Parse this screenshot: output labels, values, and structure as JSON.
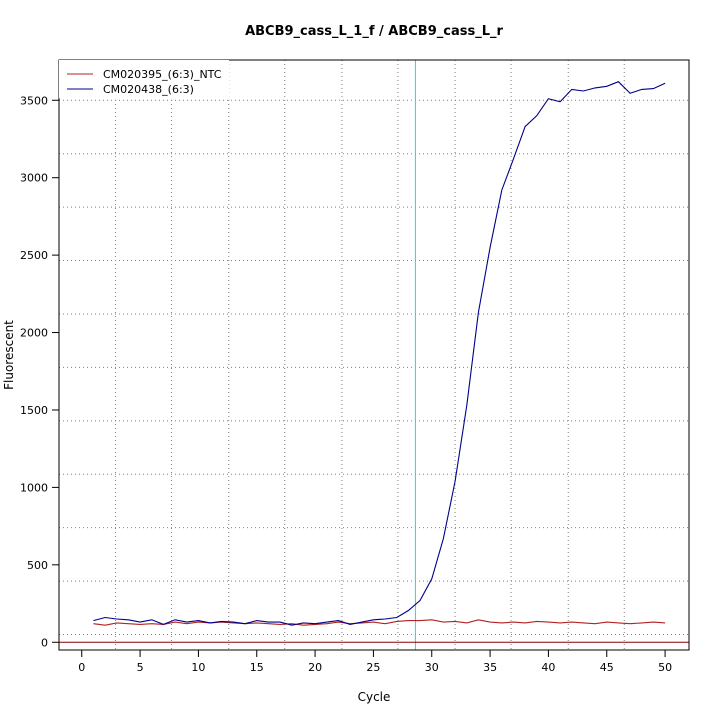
{
  "chart_data": {
    "type": "line",
    "title": "ABCB9_cass_L_1_f / ABCB9_cass_L_r",
    "xlabel": "Cycle",
    "ylabel": "Fluorescent",
    "xlim": [
      -1.95,
      52.05
    ],
    "ylim": [
      -50,
      3760
    ],
    "x_ticks": [
      0,
      5,
      10,
      15,
      20,
      25,
      30,
      35,
      40,
      45,
      50
    ],
    "x_tick_labels": [
      "0",
      "5",
      "10",
      "15",
      "20",
      "25",
      "30",
      "35",
      "40",
      "45",
      "50"
    ],
    "y_ticks": [
      0,
      500,
      1000,
      1500,
      2000,
      2500,
      3000,
      3500
    ],
    "y_tick_labels": [
      "0",
      "500",
      "1000",
      "1500",
      "2000",
      "2500",
      "3000",
      "3500"
    ],
    "grid": true,
    "grid_x": [
      2.9,
      7.7,
      12.6,
      17.4,
      22.3,
      27.1,
      32.0,
      36.8,
      41.7,
      46.5
    ],
    "grid_y": [
      50,
      395,
      740,
      1085,
      1430,
      1775,
      2120,
      2465,
      2810,
      3155,
      3500
    ],
    "threshold_cycle": 28.6,
    "threshold_color": "#00e5ee",
    "baseline_color": "#8b0000",
    "legend_position": "top-left",
    "x": [
      1,
      2,
      3,
      4,
      5,
      6,
      7,
      8,
      9,
      10,
      11,
      12,
      13,
      14,
      15,
      16,
      17,
      18,
      19,
      20,
      21,
      22,
      23,
      24,
      25,
      26,
      27,
      28,
      29,
      30,
      31,
      32,
      33,
      34,
      35,
      36,
      37,
      38,
      39,
      40,
      41,
      42,
      43,
      44,
      45,
      46,
      47,
      48,
      49,
      50
    ],
    "series": [
      {
        "name": "CM020395_(6:3)_NTC",
        "color": "#b22222",
        "values": [
          120,
          110,
          125,
          120,
          115,
          120,
          115,
          130,
          120,
          130,
          125,
          130,
          125,
          120,
          125,
          120,
          115,
          120,
          110,
          115,
          120,
          130,
          120,
          125,
          130,
          120,
          135,
          140,
          140,
          145,
          130,
          135,
          125,
          145,
          130,
          125,
          130,
          125,
          135,
          130,
          125,
          130,
          125,
          120,
          130,
          125,
          120,
          125,
          130,
          125
        ]
      },
      {
        "name": "CM020438_(6:3)",
        "color": "#00008b",
        "values": [
          140,
          160,
          150,
          145,
          130,
          145,
          115,
          145,
          130,
          140,
          125,
          135,
          130,
          120,
          140,
          130,
          130,
          110,
          125,
          120,
          130,
          140,
          115,
          130,
          145,
          150,
          160,
          205,
          270,
          410,
          670,
          1040,
          1530,
          2130,
          2550,
          2920,
          3120,
          3330,
          3400,
          3510,
          3490,
          3570,
          3560,
          3580,
          3590,
          3620,
          3545,
          3570,
          3575,
          3610
        ]
      }
    ]
  }
}
